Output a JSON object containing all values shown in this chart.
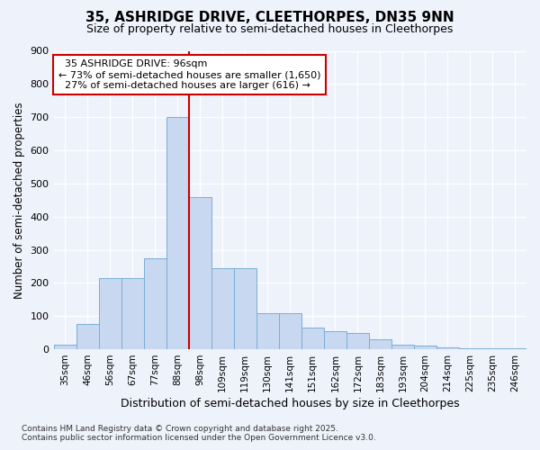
{
  "title1": "35, ASHRIDGE DRIVE, CLEETHORPES, DN35 9NN",
  "title2": "Size of property relative to semi-detached houses in Cleethorpes",
  "xlabel": "Distribution of semi-detached houses by size in Cleethorpes",
  "ylabel": "Number of semi-detached properties",
  "categories": [
    "35sqm",
    "46sqm",
    "56sqm",
    "67sqm",
    "77sqm",
    "88sqm",
    "98sqm",
    "109sqm",
    "119sqm",
    "130sqm",
    "141sqm",
    "151sqm",
    "162sqm",
    "172sqm",
    "183sqm",
    "193sqm",
    "204sqm",
    "214sqm",
    "225sqm",
    "235sqm",
    "246sqm"
  ],
  "values": [
    15,
    75,
    215,
    215,
    275,
    700,
    460,
    245,
    245,
    110,
    110,
    65,
    55,
    50,
    30,
    15,
    12,
    5,
    2,
    2,
    2
  ],
  "bar_color": "#c8d8f0",
  "bar_edge_color": "#7aaed6",
  "background_color": "#eef2fb",
  "plot_bg_color": "#eef2fb",
  "grid_color": "#ffffff",
  "property_label": "35 ASHRIDGE DRIVE: 96sqm",
  "pct_smaller": 73,
  "pct_larger": 27,
  "count_smaller": 1650,
  "count_larger": 616,
  "red_line_bin": 6,
  "annotation_box_facecolor": "#ffffff",
  "annotation_box_edgecolor": "#cc0000",
  "red_line_color": "#cc0000",
  "ylim": [
    0,
    900
  ],
  "yticks": [
    0,
    100,
    200,
    300,
    400,
    500,
    600,
    700,
    800,
    900
  ],
  "title1_fontsize": 11,
  "title2_fontsize": 9,
  "footer1": "Contains HM Land Registry data © Crown copyright and database right 2025.",
  "footer2": "Contains public sector information licensed under the Open Government Licence v3.0."
}
